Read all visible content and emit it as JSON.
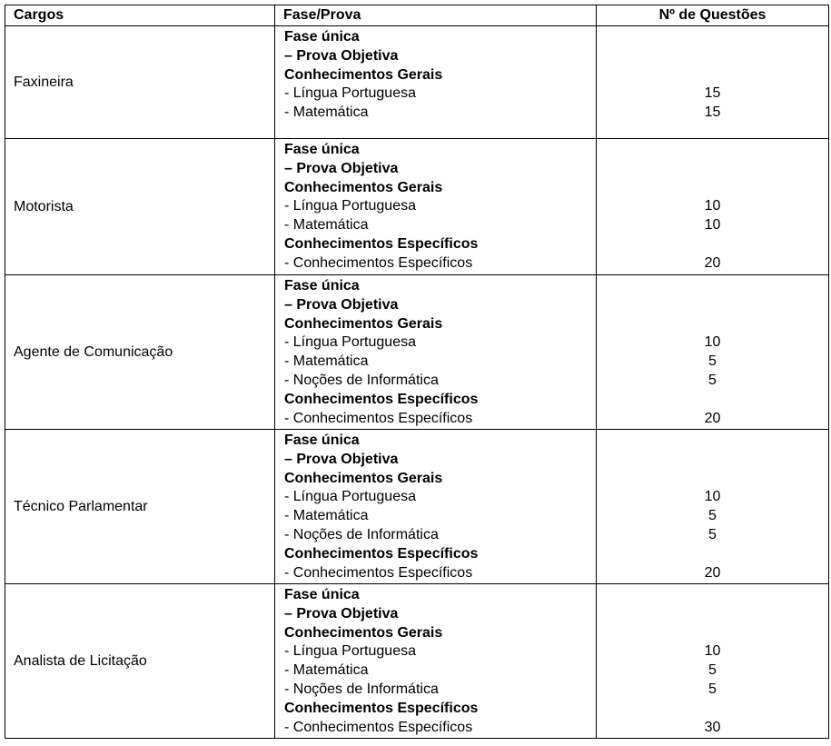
{
  "headers": {
    "cargos": "Cargos",
    "fase": "Fase/Prova",
    "questoes": "Nº de Questões"
  },
  "rows": [
    {
      "cargo": "Faxineira",
      "lines": [
        {
          "text": "Fase única",
          "bold": true,
          "count": ""
        },
        {
          "text": "– Prova Objetiva",
          "bold": true,
          "count": ""
        },
        {
          "text": "Conhecimentos Gerais",
          "bold": true,
          "count": ""
        },
        {
          "text": "- Língua Portuguesa",
          "bold": false,
          "count": "15"
        },
        {
          "text": "- Matemática",
          "bold": false,
          "count": "15"
        }
      ]
    },
    {
      "cargo": "Motorista",
      "lines": [
        {
          "text": "Fase única",
          "bold": true,
          "count": ""
        },
        {
          "text": "– Prova Objetiva",
          "bold": true,
          "count": ""
        },
        {
          "text": "Conhecimentos Gerais",
          "bold": true,
          "count": ""
        },
        {
          "text": "- Língua Portuguesa",
          "bold": false,
          "count": "10"
        },
        {
          "text": "- Matemática",
          "bold": false,
          "count": "10"
        },
        {
          "text": "Conhecimentos Específicos",
          "bold": true,
          "count": ""
        },
        {
          "text": "- Conhecimentos Específicos",
          "bold": false,
          "count": "20"
        }
      ]
    },
    {
      "cargo": "Agente de Comunicação",
      "lines": [
        {
          "text": "Fase única",
          "bold": true,
          "count": ""
        },
        {
          "text": "– Prova Objetiva",
          "bold": true,
          "count": ""
        },
        {
          "text": "Conhecimentos Gerais",
          "bold": true,
          "count": ""
        },
        {
          "text": "- Língua Portuguesa",
          "bold": false,
          "count": "10"
        },
        {
          "text": "- Matemática",
          "bold": false,
          "count": "5"
        },
        {
          "text": "- Noções de Informática",
          "bold": false,
          "count": "5"
        },
        {
          "text": "Conhecimentos Específicos",
          "bold": true,
          "count": ""
        },
        {
          "text": "- Conhecimentos Específicos",
          "bold": false,
          "count": "20"
        }
      ]
    },
    {
      "cargo": "Técnico Parlamentar",
      "lines": [
        {
          "text": "Fase única",
          "bold": true,
          "count": ""
        },
        {
          "text": "– Prova Objetiva",
          "bold": true,
          "count": ""
        },
        {
          "text": "Conhecimentos Gerais",
          "bold": true,
          "count": ""
        },
        {
          "text": "- Língua Portuguesa",
          "bold": false,
          "count": "10"
        },
        {
          "text": "- Matemática",
          "bold": false,
          "count": "5"
        },
        {
          "text": "- Noções de Informática",
          "bold": false,
          "count": "5"
        },
        {
          "text": "Conhecimentos Específicos",
          "bold": true,
          "count": ""
        },
        {
          "text": "- Conhecimentos Específicos",
          "bold": false,
          "count": "20"
        }
      ]
    },
    {
      "cargo": "Analista de Licitação",
      "lines": [
        {
          "text": "Fase única",
          "bold": true,
          "count": ""
        },
        {
          "text": "– Prova Objetiva",
          "bold": true,
          "count": ""
        },
        {
          "text": "Conhecimentos Gerais",
          "bold": true,
          "count": ""
        },
        {
          "text": "- Língua Portuguesa",
          "bold": false,
          "count": "10"
        },
        {
          "text": "- Matemática",
          "bold": false,
          "count": "5"
        },
        {
          "text": "- Noções de Informática",
          "bold": false,
          "count": "5"
        },
        {
          "text": "Conhecimentos Específicos",
          "bold": true,
          "count": ""
        },
        {
          "text": "- Conhecimentos Específicos",
          "bold": false,
          "count": "30"
        }
      ]
    }
  ]
}
